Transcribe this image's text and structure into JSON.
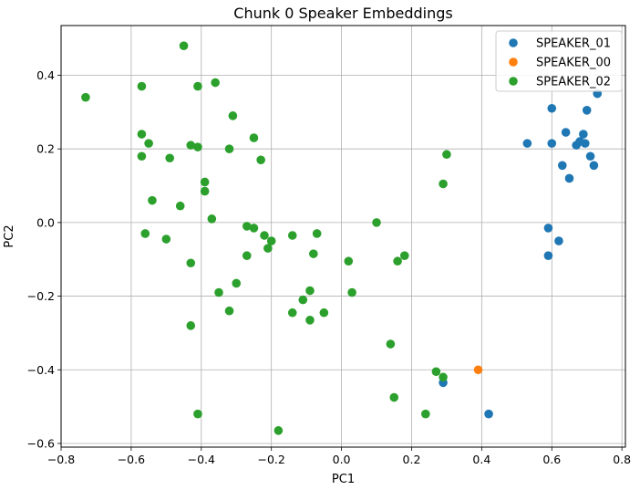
{
  "chart_data": {
    "type": "scatter",
    "title": "Chunk 0 Speaker Embeddings",
    "xlabel": "PC1",
    "ylabel": "PC2",
    "xlim": [
      -0.8,
      0.81
    ],
    "ylim": [
      -0.61,
      0.535
    ],
    "xticks": [
      -0.8,
      -0.6,
      -0.4,
      -0.2,
      0.0,
      0.2,
      0.4,
      0.6,
      0.8
    ],
    "xtick_labels": [
      "−0.8",
      "−0.6",
      "−0.4",
      "−0.2",
      "0.0",
      "0.2",
      "0.4",
      "0.6",
      "0.8"
    ],
    "yticks": [
      -0.6,
      -0.4,
      -0.2,
      0.0,
      0.2,
      0.4
    ],
    "ytick_labels": [
      "−0.6",
      "−0.4",
      "−0.2",
      "0.0",
      "0.2",
      "0.4"
    ],
    "grid": true,
    "legend_position": "top-right",
    "series": [
      {
        "name": "SPEAKER_01",
        "color": "#1f77b4",
        "points": [
          [
            0.6,
            0.31
          ],
          [
            0.73,
            0.35
          ],
          [
            0.7,
            0.305
          ],
          [
            0.64,
            0.245
          ],
          [
            0.69,
            0.24
          ],
          [
            0.53,
            0.215
          ],
          [
            0.6,
            0.215
          ],
          [
            0.67,
            0.21
          ],
          [
            0.68,
            0.22
          ],
          [
            0.695,
            0.215
          ],
          [
            0.71,
            0.18
          ],
          [
            0.63,
            0.155
          ],
          [
            0.72,
            0.155
          ],
          [
            0.65,
            0.12
          ],
          [
            0.59,
            -0.015
          ],
          [
            0.62,
            -0.05
          ],
          [
            0.59,
            -0.09
          ],
          [
            0.29,
            -0.435
          ],
          [
            0.42,
            -0.52
          ]
        ]
      },
      {
        "name": "SPEAKER_00",
        "color": "#ff7f0e",
        "points": [
          [
            0.39,
            -0.4
          ]
        ]
      },
      {
        "name": "SPEAKER_02",
        "color": "#2ca02c",
        "points": [
          [
            -0.45,
            0.48
          ],
          [
            -0.73,
            0.34
          ],
          [
            -0.57,
            0.37
          ],
          [
            -0.41,
            0.37
          ],
          [
            -0.36,
            0.38
          ],
          [
            -0.31,
            0.29
          ],
          [
            -0.57,
            0.24
          ],
          [
            -0.55,
            0.215
          ],
          [
            -0.43,
            0.21
          ],
          [
            -0.41,
            0.205
          ],
          [
            -0.32,
            0.2
          ],
          [
            -0.25,
            0.23
          ],
          [
            -0.57,
            0.18
          ],
          [
            -0.49,
            0.175
          ],
          [
            -0.23,
            0.17
          ],
          [
            -0.39,
            0.11
          ],
          [
            -0.39,
            0.085
          ],
          [
            -0.54,
            0.06
          ],
          [
            -0.46,
            0.045
          ],
          [
            -0.37,
            0.01
          ],
          [
            -0.27,
            -0.01
          ],
          [
            -0.25,
            -0.015
          ],
          [
            -0.56,
            -0.03
          ],
          [
            -0.5,
            -0.045
          ],
          [
            -0.22,
            -0.035
          ],
          [
            -0.2,
            -0.05
          ],
          [
            -0.21,
            -0.07
          ],
          [
            -0.14,
            -0.035
          ],
          [
            -0.07,
            -0.03
          ],
          [
            -0.27,
            -0.09
          ],
          [
            -0.08,
            -0.085
          ],
          [
            -0.43,
            -0.11
          ],
          [
            -0.3,
            -0.165
          ],
          [
            -0.35,
            -0.19
          ],
          [
            -0.09,
            -0.185
          ],
          [
            -0.11,
            -0.21
          ],
          [
            -0.32,
            -0.24
          ],
          [
            -0.14,
            -0.245
          ],
          [
            -0.05,
            -0.245
          ],
          [
            -0.09,
            -0.265
          ],
          [
            -0.43,
            -0.28
          ],
          [
            -0.41,
            -0.52
          ],
          [
            -0.18,
            -0.565
          ],
          [
            0.1,
            0.0
          ],
          [
            0.3,
            0.185
          ],
          [
            0.29,
            0.105
          ],
          [
            0.02,
            -0.105
          ],
          [
            0.16,
            -0.105
          ],
          [
            0.18,
            -0.09
          ],
          [
            0.03,
            -0.19
          ],
          [
            0.14,
            -0.33
          ],
          [
            0.27,
            -0.405
          ],
          [
            0.29,
            -0.42
          ],
          [
            0.15,
            -0.475
          ],
          [
            0.24,
            -0.52
          ]
        ]
      }
    ]
  }
}
